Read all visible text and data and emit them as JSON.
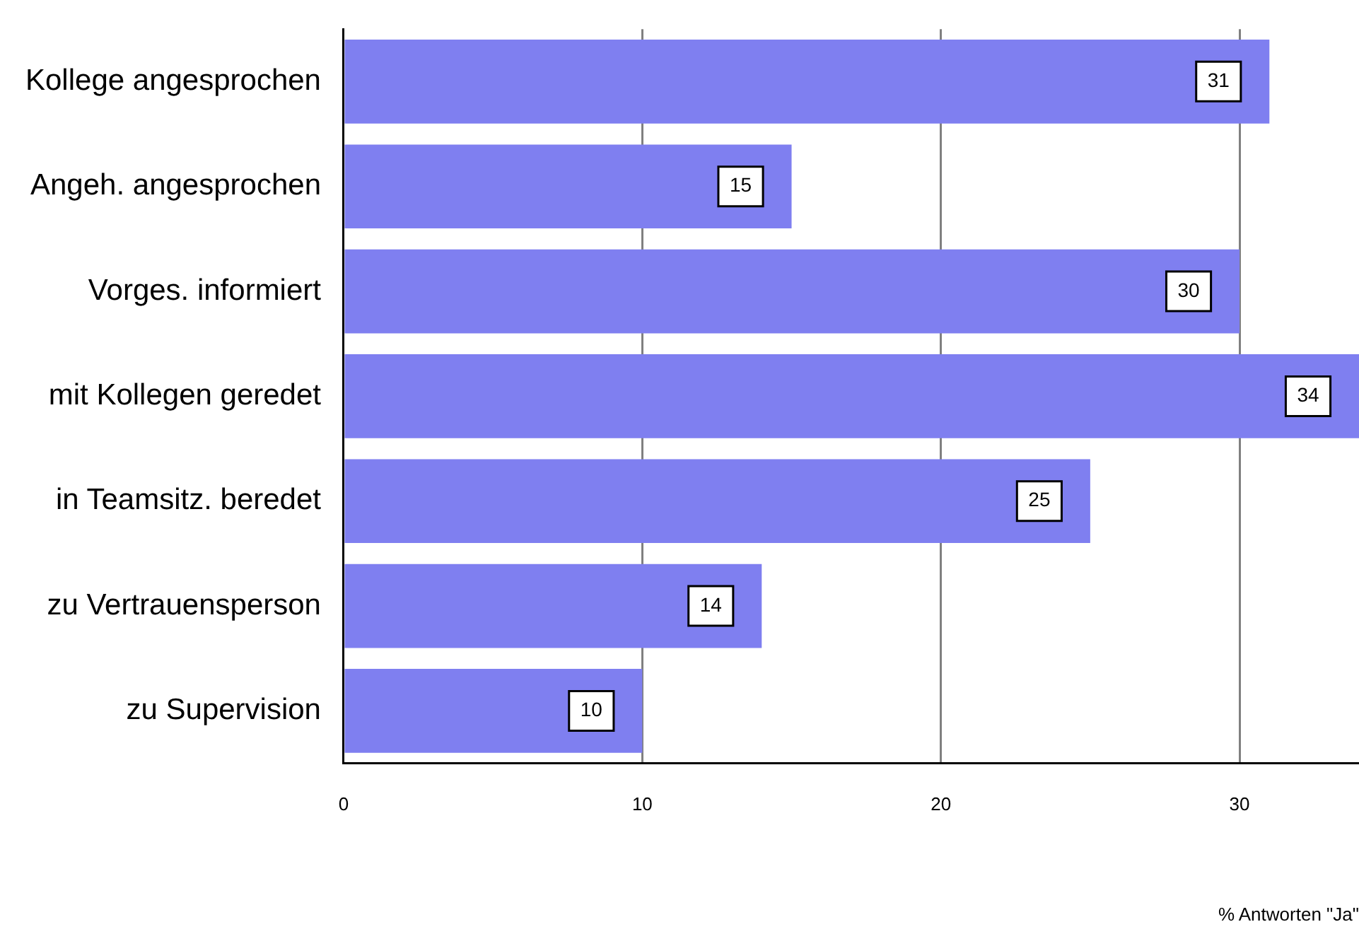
{
  "chart_data": {
    "type": "bar",
    "orientation": "horizontal",
    "xlabel": "% Antworten \"Ja\"",
    "categories": [
      "Kollege angesprochen",
      "Angeh. angesprochen",
      "Vorges. informiert",
      "mit Kollegen geredet",
      "in Teamsitz. beredet",
      "zu Vertrauensperson",
      "zu Supervision"
    ],
    "values": [
      31,
      15,
      30,
      34,
      25,
      14,
      10
    ],
    "color": "#7f7ff0",
    "xlim": [
      0,
      34
    ],
    "xticks": [
      0,
      10,
      20,
      30
    ],
    "grid": "x",
    "data_labels": true,
    "legend": false
  }
}
